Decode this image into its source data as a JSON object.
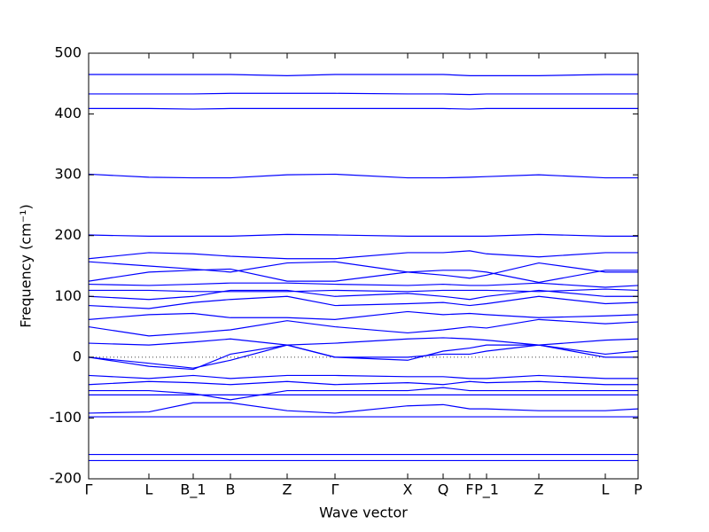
{
  "chart_data": {
    "type": "line",
    "xlabel": "Wave vector",
    "ylabel": "Frequency (cm⁻¹)",
    "x": [
      0,
      0.68,
      1.18,
      1.6,
      2.24,
      2.78,
      3.6,
      4.0,
      4.3,
      4.49,
      5.08,
      5.83,
      6.2
    ],
    "xlim": [
      0,
      6.2
    ],
    "xticks": [
      {
        "value": 0,
        "label": "Γ"
      },
      {
        "value": 0.68,
        "label": "L"
      },
      {
        "value": 1.18,
        "label": "B_1"
      },
      {
        "value": 1.6,
        "label": "B"
      },
      {
        "value": 2.24,
        "label": "Z"
      },
      {
        "value": 2.78,
        "label": "Γ"
      },
      {
        "value": 3.6,
        "label": "X"
      },
      {
        "value": 4.0,
        "label": "Q"
      },
      {
        "value": 4.3,
        "label": "F"
      },
      {
        "value": 4.49,
        "label": "P_1"
      },
      {
        "value": 5.08,
        "label": "Z"
      },
      {
        "value": 5.83,
        "label": "L"
      },
      {
        "value": 6.2,
        "label": "P"
      }
    ],
    "ylim": [
      -200,
      500
    ],
    "yticks": [
      -200,
      -100,
      0,
      100,
      200,
      300,
      400,
      500
    ],
    "hline": 0,
    "color": "#0000ff",
    "series": [
      {
        "values": [
          465,
          465,
          465,
          465,
          463,
          465,
          465,
          465,
          463,
          463,
          463,
          465,
          465
        ]
      },
      {
        "values": [
          433,
          433,
          433,
          434,
          434,
          434,
          433,
          433,
          432,
          433,
          433,
          433,
          433
        ]
      },
      {
        "values": [
          409,
          409,
          408,
          409,
          409,
          409,
          409,
          409,
          408,
          409,
          409,
          409,
          409
        ]
      },
      {
        "values": [
          301,
          296,
          295,
          295,
          300,
          301,
          295,
          295,
          296,
          297,
          300,
          295,
          295
        ]
      },
      {
        "values": [
          201,
          199,
          199,
          199,
          202,
          201,
          199,
          199,
          199,
          199,
          202,
          199,
          199
        ]
      },
      {
        "values": [
          162,
          172,
          170,
          166,
          162,
          162,
          172,
          172,
          175,
          170,
          165,
          172,
          172
        ]
      },
      {
        "values": [
          157,
          150,
          145,
          140,
          155,
          157,
          140,
          135,
          130,
          135,
          155,
          140,
          140
        ]
      },
      {
        "values": [
          125,
          140,
          143,
          145,
          125,
          125,
          140,
          143,
          143,
          140,
          123,
          143,
          143
        ]
      },
      {
        "values": [
          120,
          118,
          120,
          122,
          122,
          120,
          118,
          120,
          118,
          118,
          122,
          115,
          118
        ]
      },
      {
        "values": [
          110,
          110,
          108,
          108,
          108,
          110,
          108,
          110,
          110,
          110,
          108,
          112,
          110
        ]
      },
      {
        "values": [
          100,
          95,
          100,
          110,
          110,
          100,
          105,
          100,
          95,
          100,
          110,
          100,
          100
        ]
      },
      {
        "values": [
          85,
          80,
          90,
          95,
          100,
          85,
          88,
          90,
          85,
          88,
          100,
          88,
          90
        ]
      },
      {
        "values": [
          62,
          70,
          72,
          65,
          65,
          62,
          75,
          70,
          72,
          70,
          65,
          68,
          70
        ]
      },
      {
        "values": [
          50,
          35,
          40,
          45,
          60,
          50,
          40,
          45,
          50,
          48,
          62,
          55,
          58
        ]
      },
      {
        "values": [
          23,
          20,
          25,
          30,
          20,
          23,
          30,
          32,
          30,
          28,
          20,
          28,
          30
        ]
      },
      {
        "values": [
          0,
          -15,
          -20,
          5,
          20,
          0,
          -5,
          10,
          15,
          20,
          20,
          5,
          10
        ]
      },
      {
        "values": [
          0,
          -10,
          -18,
          -5,
          20,
          0,
          0,
          5,
          5,
          10,
          20,
          0,
          0
        ]
      },
      {
        "values": [
          -30,
          -35,
          -30,
          -35,
          -30,
          -30,
          -32,
          -32,
          -35,
          -35,
          -30,
          -35,
          -35
        ]
      },
      {
        "values": [
          -45,
          -40,
          -42,
          -45,
          -40,
          -45,
          -42,
          -45,
          -40,
          -42,
          -40,
          -45,
          -45
        ]
      },
      {
        "values": [
          -55,
          -55,
          -60,
          -70,
          -55,
          -55,
          -55,
          -50,
          -55,
          -55,
          -55,
          -55,
          -55
        ]
      },
      {
        "values": [
          -62,
          -62,
          -62,
          -62,
          -62,
          -62,
          -62,
          -62,
          -62,
          -62,
          -62,
          -62,
          -62
        ]
      },
      {
        "values": [
          -92,
          -90,
          -75,
          -75,
          -88,
          -92,
          -80,
          -78,
          -85,
          -85,
          -88,
          -88,
          -85
        ]
      },
      {
        "values": [
          -98,
          -98,
          -98,
          -98,
          -98,
          -98,
          -98,
          -98,
          -98,
          -98,
          -98,
          -98,
          -98
        ]
      },
      {
        "values": [
          -160,
          -160,
          -160,
          -160,
          -160,
          -160,
          -160,
          -160,
          -160,
          -160,
          -160,
          -160,
          -160
        ]
      },
      {
        "values": [
          -170,
          -170,
          -170,
          -170,
          -170,
          -170,
          -170,
          -170,
          -170,
          -170,
          -170,
          -170,
          -170
        ]
      }
    ]
  }
}
